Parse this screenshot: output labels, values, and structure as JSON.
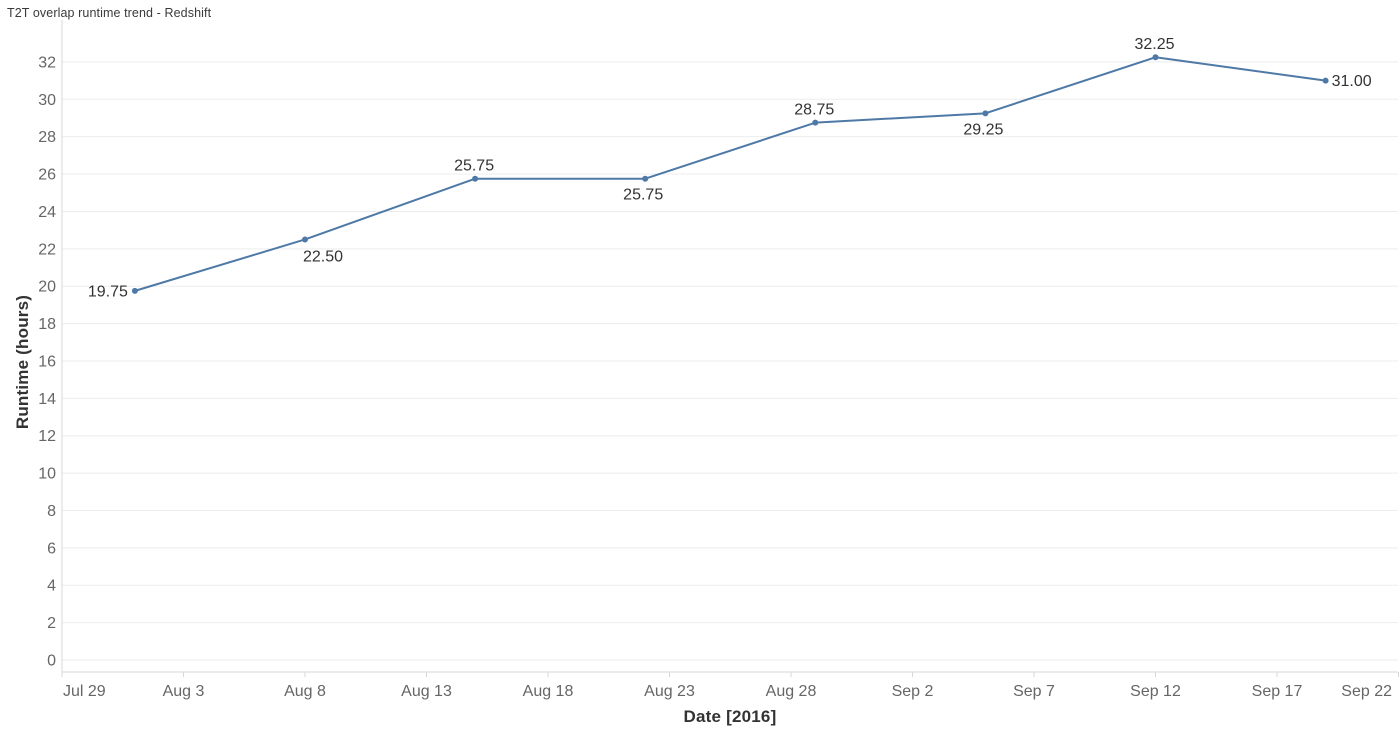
{
  "chart_data": {
    "type": "line",
    "title": "T2T overlap runtime trend - Redshift",
    "xlabel": "Date [2016]",
    "ylabel": "Runtime (hours)",
    "x": [
      "Aug 1",
      "Aug 8",
      "Aug 15",
      "Aug 22",
      "Aug 29",
      "Sep 5",
      "Sep 12",
      "Sep 19"
    ],
    "x_day_offsets": [
      3,
      10,
      17,
      24,
      31,
      38,
      45,
      52
    ],
    "values": [
      19.75,
      22.5,
      25.75,
      25.75,
      28.75,
      29.25,
      32.25,
      31.0
    ],
    "point_labels": [
      "19.75",
      "22.50",
      "25.75",
      "25.75",
      "28.75",
      "29.25",
      "32.25",
      "31.00"
    ],
    "point_label_anchors": [
      "left",
      "below-right",
      "above",
      "below",
      "above",
      "below",
      "above",
      "right"
    ],
    "x_tick_labels": [
      "Jul 29",
      "Aug 3",
      "Aug 8",
      "Aug 13",
      "Aug 18",
      "Aug 23",
      "Aug 28",
      "Sep 2",
      "Sep 7",
      "Sep 12",
      "Sep 17",
      "Sep 22"
    ],
    "x_tick_day_offsets": [
      0,
      5,
      10,
      15,
      20,
      25,
      30,
      35,
      40,
      45,
      50,
      55
    ],
    "y_ticks": [
      0,
      2,
      4,
      6,
      8,
      10,
      12,
      14,
      16,
      18,
      20,
      22,
      24,
      26,
      28,
      30,
      32
    ],
    "ylim": [
      0,
      32
    ],
    "grid": "horizontal",
    "legend": "none",
    "colors": {
      "line": "#4e79a7",
      "marker": "#4e79a7",
      "grid": "#ededed",
      "axis": "#d7d7d7",
      "tick_label": "#666666",
      "data_label": "#333333",
      "axis_title": "#333333",
      "title": "#3a3a3a"
    }
  }
}
